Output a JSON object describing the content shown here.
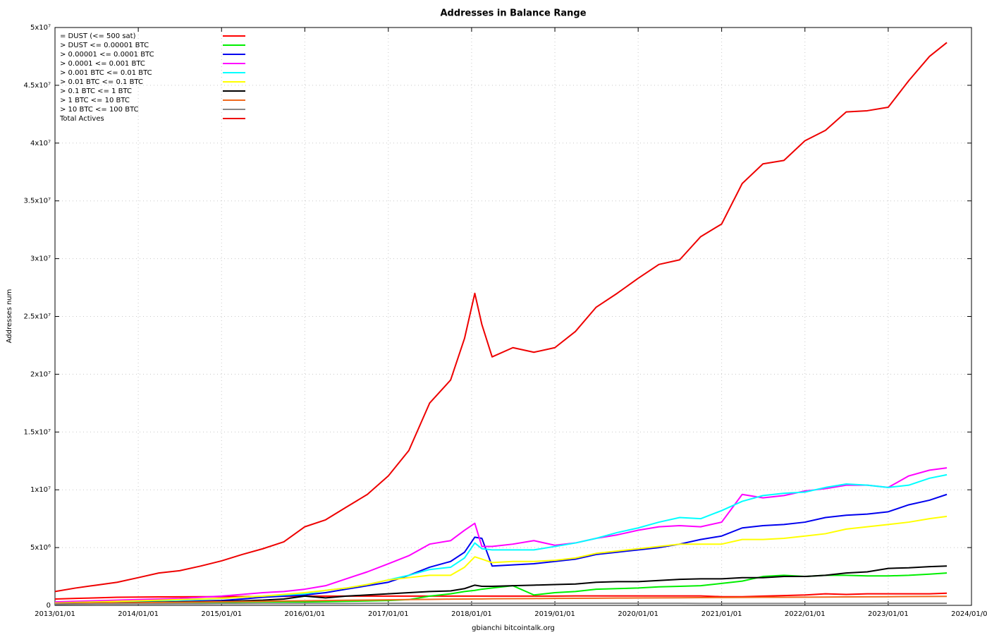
{
  "chart_data": {
    "type": "line",
    "title": "Addresses in Balance Range",
    "y_label": "Addresses num",
    "x_label": "gbianchi bitcointalk.org",
    "grid": true,
    "legend": "top-left",
    "x": [
      "2013/01/01",
      "2013/04/01",
      "2013/07/01",
      "2013/10/01",
      "2014/01/01",
      "2014/04/01",
      "2014/07/01",
      "2014/10/01",
      "2015/01/01",
      "2015/04/01",
      "2015/07/01",
      "2015/10/01",
      "2016/01/01",
      "2016/04/01",
      "2016/07/01",
      "2016/10/01",
      "2017/01/01",
      "2017/04/01",
      "2017/07/01",
      "2017/10/01",
      "2017/12/01",
      "2018/01/15",
      "2018/02/15",
      "2018/04/01",
      "2018/07/01",
      "2018/10/01",
      "2019/01/01",
      "2019/04/01",
      "2019/07/01",
      "2019/10/01",
      "2020/01/01",
      "2020/04/01",
      "2020/07/01",
      "2020/10/01",
      "2021/01/01",
      "2021/04/01",
      "2021/07/01",
      "2021/10/01",
      "2022/01/01",
      "2022/04/01",
      "2022/07/01",
      "2022/10/01",
      "2023/01/01",
      "2023/04/01",
      "2023/07/01",
      "2023/09/15"
    ],
    "xlim": [
      "2013/01/01",
      "2024/01/01"
    ],
    "xticks": [
      "2013/01/01",
      "2014/01/01",
      "2015/01/01",
      "2016/01/01",
      "2017/01/01",
      "2018/01/01",
      "2019/01/01",
      "2020/01/01",
      "2021/01/01",
      "2022/01/01",
      "2023/01/01",
      "2024/01/01"
    ],
    "ylim": [
      0,
      50000000.0
    ],
    "yticks": [
      0,
      {
        "value": 5000000.0,
        "label": "5x10⁶"
      },
      {
        "value": 10000000.0,
        "label": "1x10⁷"
      },
      {
        "value": 15000000.0,
        "label": "1.5x10⁷"
      },
      {
        "value": 20000000.0,
        "label": "2x10⁷"
      },
      {
        "value": 25000000.0,
        "label": "2.5x10⁷"
      },
      {
        "value": 30000000.0,
        "label": "3x10⁷"
      },
      {
        "value": 35000000.0,
        "label": "3.5x10⁷"
      },
      {
        "value": 40000000.0,
        "label": "4x10⁷"
      },
      {
        "value": 45000000.0,
        "label": "4.5x10⁷"
      },
      {
        "value": 50000000.0,
        "label": "5x10⁷"
      }
    ],
    "series": [
      {
        "name": "= DUST (<= 500 sat)",
        "color": "#ff0000",
        "values": [
          550000.0,
          600000.0,
          650000.0,
          700000.0,
          720000.0,
          730000.0,
          740000.0,
          750000.0,
          750000.0,
          760000.0,
          770000.0,
          780000.0,
          800000.0,
          800000.0,
          800000.0,
          800000.0,
          800000.0,
          800000.0,
          800000.0,
          800000.0,
          800000.0,
          800000.0,
          800000.0,
          800000.0,
          800000.0,
          800000.0,
          800000.0,
          820000.0,
          820000.0,
          820000.0,
          820000.0,
          820000.0,
          820000.0,
          820000.0,
          750000.0,
          750000.0,
          800000.0,
          850000.0,
          900000.0,
          1000000.0,
          950000.0,
          1000000.0,
          1000000.0,
          1000000.0,
          1000000.0,
          1050000.0
        ]
      },
      {
        "name": "> DUST <= 0.00001 BTC",
        "color": "#00ee00",
        "values": [
          100000.0,
          120000.0,
          140000.0,
          160000.0,
          180000.0,
          200000.0,
          220000.0,
          240000.0,
          260000.0,
          280000.0,
          300000.0,
          300000.0,
          300000.0,
          320000.0,
          350000.0,
          380000.0,
          420000.0,
          500000.0,
          800000.0,
          1000000.0,
          1200000.0,
          1300000.0,
          1400000.0,
          1500000.0,
          1700000.0,
          900000.0,
          1100000.0,
          1200000.0,
          1400000.0,
          1450000.0,
          1500000.0,
          1600000.0,
          1650000.0,
          1700000.0,
          1900000.0,
          2100000.0,
          2500000.0,
          2600000.0,
          2500000.0,
          2600000.0,
          2600000.0,
          2550000.0,
          2550000.0,
          2600000.0,
          2700000.0,
          2800000.0
        ]
      },
      {
        "name": "> 0.00001 <= 0.0001 BTC",
        "color": "#0000ee",
        "values": [
          100000.0,
          130000.0,
          160000.0,
          190000.0,
          220000.0,
          270000.0,
          320000.0,
          370000.0,
          420000.0,
          550000.0,
          700000.0,
          800000.0,
          900000.0,
          1100000.0,
          1400000.0,
          1700000.0,
          2000000.0,
          2600000.0,
          3300000.0,
          3800000.0,
          4600000.0,
          5900000.0,
          5800000.0,
          3400000.0,
          3500000.0,
          3600000.0,
          3800000.0,
          4000000.0,
          4400000.0,
          4600000.0,
          4800000.0,
          5000000.0,
          5300000.0,
          5700000.0,
          6000000.0,
          6700000.0,
          6900000.0,
          7000000.0,
          7200000.0,
          7600000.0,
          7800000.0,
          7900000.0,
          8100000.0,
          8700000.0,
          9100000.0,
          9600000.0
        ]
      },
      {
        "name": "> 0.0001 <= 0.001 BTC",
        "color": "#ff00ff",
        "values": [
          300000.0,
          350000.0,
          400000.0,
          450000.0,
          500000.0,
          550000.0,
          600000.0,
          700000.0,
          800000.0,
          950000.0,
          1100000.0,
          1200000.0,
          1400000.0,
          1700000.0,
          2300000.0,
          2900000.0,
          3600000.0,
          4300000.0,
          5300000.0,
          5600000.0,
          6500000.0,
          7100000.0,
          5100000.0,
          5100000.0,
          5300000.0,
          5600000.0,
          5200000.0,
          5400000.0,
          5800000.0,
          6100000.0,
          6500000.0,
          6800000.0,
          6900000.0,
          6800000.0,
          7200000.0,
          9600000.0,
          9300000.0,
          9500000.0,
          9900000.0,
          10100000.0,
          10400000.0,
          10400000.0,
          10200000.0,
          11200000.0,
          11700000.0,
          11900000.0
        ]
      },
      {
        "name": "> 0.001 BTC <= 0.01 BTC",
        "color": "#00ffff",
        "values": [
          200000.0,
          250000.0,
          300000.0,
          330000.0,
          350000.0,
          400000.0,
          450000.0,
          500000.0,
          600000.0,
          700000.0,
          800000.0,
          900000.0,
          1000000.0,
          1300000.0,
          1500000.0,
          1800000.0,
          2200000.0,
          2600000.0,
          3100000.0,
          3300000.0,
          4100000.0,
          5400000.0,
          4900000.0,
          4800000.0,
          4800000.0,
          4800000.0,
          5100000.0,
          5400000.0,
          5800000.0,
          6300000.0,
          6700000.0,
          7200000.0,
          7600000.0,
          7500000.0,
          8200000.0,
          9000000.0,
          9500000.0,
          9700000.0,
          9800000.0,
          10200000.0,
          10500000.0,
          10400000.0,
          10200000.0,
          10400000.0,
          11000000.0,
          11300000.0
        ]
      },
      {
        "name": "> 0.01 BTC <= 0.1 BTC",
        "color": "#ffff00",
        "values": [
          200000.0,
          250000.0,
          300000.0,
          350000.0,
          400000.0,
          450000.0,
          500000.0,
          550000.0,
          600000.0,
          700000.0,
          800000.0,
          950000.0,
          1100000.0,
          1300000.0,
          1500000.0,
          1800000.0,
          2200000.0,
          2400000.0,
          2600000.0,
          2600000.0,
          3300000.0,
          4200000.0,
          4000000.0,
          3700000.0,
          3800000.0,
          3800000.0,
          3900000.0,
          4100000.0,
          4500000.0,
          4700000.0,
          4900000.0,
          5100000.0,
          5300000.0,
          5300000.0,
          5300000.0,
          5700000.0,
          5700000.0,
          5800000.0,
          6000000.0,
          6200000.0,
          6600000.0,
          6800000.0,
          7000000.0,
          7200000.0,
          7500000.0,
          7700000.0
        ]
      },
      {
        "name": "> 0.1 BTC <= 1 BTC",
        "color": "#000000",
        "values": [
          150000.0,
          180000.0,
          200000.0,
          220000.0,
          250000.0,
          280000.0,
          300000.0,
          330000.0,
          350000.0,
          400000.0,
          450000.0,
          550000.0,
          800000.0,
          650000.0,
          800000.0,
          900000.0,
          1000000.0,
          1100000.0,
          1200000.0,
          1250000.0,
          1450000.0,
          1750000.0,
          1650000.0,
          1650000.0,
          1700000.0,
          1750000.0,
          1800000.0,
          1850000.0,
          2000000.0,
          2050000.0,
          2050000.0,
          2150000.0,
          2250000.0,
          2300000.0,
          2300000.0,
          2400000.0,
          2400000.0,
          2500000.0,
          2500000.0,
          2600000.0,
          2800000.0,
          2900000.0,
          3200000.0,
          3250000.0,
          3350000.0,
          3400000.0
        ]
      },
      {
        "name": "> 1 BTC <= 10 BTC",
        "color": "#f06a1e",
        "values": [
          150000.0,
          170000.0,
          190000.0,
          210000.0,
          230000.0,
          250000.0,
          270000.0,
          290000.0,
          310000.0,
          330000.0,
          350000.0,
          380000.0,
          400000.0,
          420000.0,
          440000.0,
          460000.0,
          480000.0,
          500000.0,
          520000.0,
          540000.0,
          550000.0,
          560000.0,
          560000.0,
          570000.0,
          580000.0,
          590000.0,
          600000.0,
          610000.0,
          620000.0,
          630000.0,
          640000.0,
          650000.0,
          660000.0,
          670000.0,
          680000.0,
          690000.0,
          700000.0,
          700000.0,
          710000.0,
          720000.0,
          730000.0,
          740000.0,
          750000.0,
          760000.0,
          770000.0,
          780000.0
        ]
      },
      {
        "name": "> 10 BTC <= 100 BTC",
        "color": "#888888",
        "values": [
          100000.0,
          110000.0,
          120000.0,
          120000.0,
          130000.0,
          130000.0,
          140000.0,
          140000.0,
          150000.0,
          150000.0,
          160000.0,
          160000.0,
          170000.0,
          170000.0,
          170000.0,
          180000.0,
          180000.0,
          180000.0,
          180000.0,
          180000.0,
          180000.0,
          180000.0,
          180000.0,
          180000.0,
          180000.0,
          180000.0,
          180000.0,
          180000.0,
          180000.0,
          180000.0,
          180000.0,
          180000.0,
          180000.0,
          170000.0,
          170000.0,
          170000.0,
          170000.0,
          170000.0,
          170000.0,
          170000.0,
          170000.0,
          170000.0,
          180000.0,
          180000.0,
          180000.0,
          180000.0
        ]
      },
      {
        "name": "Total Actives",
        "color": "#ee0000",
        "values": [
          1200000.0,
          1500000.0,
          1750000.0,
          2000000.0,
          2400000.0,
          2800000.0,
          3000000.0,
          3400000.0,
          3850000.0,
          4400000.0,
          4900000.0,
          5500000.0,
          6800000.0,
          7400000.0,
          8500000.0,
          9600000.0,
          11200000.0,
          13400000.0,
          17500000.0,
          19500000.0,
          23100000.0,
          27000000.0,
          24300000.0,
          21500000.0,
          22300000.0,
          21900000.0,
          22300000.0,
          23700000.0,
          25800000.0,
          27000000.0,
          28300000.0,
          29500000.0,
          29900000.0,
          31900000.0,
          33000000.0,
          36500000.0,
          38200000.0,
          38500000.0,
          40200000.0,
          41100000.0,
          42700000.0,
          42800000.0,
          43100000.0,
          45400000.0,
          47500000.0,
          48700000.0
        ]
      }
    ]
  }
}
